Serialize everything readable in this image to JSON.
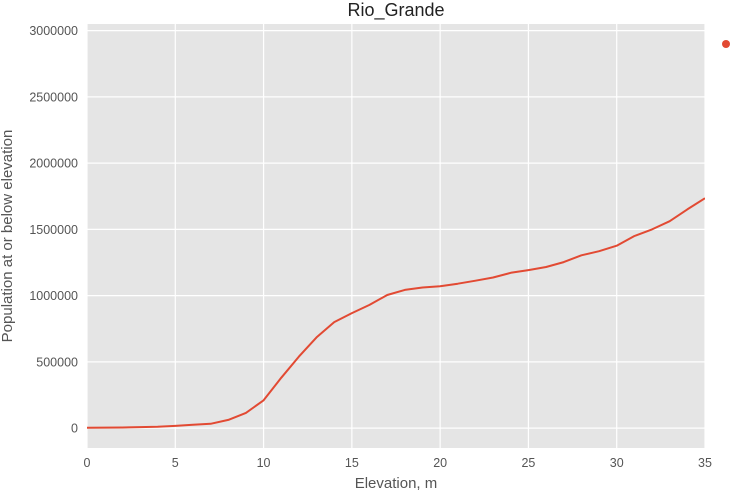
{
  "chart_data": {
    "type": "line",
    "title": "Rio_Grande",
    "xlabel": "Elevation, m",
    "ylabel": "Population at or below elevation",
    "xlim": [
      0,
      35
    ],
    "ylim": [
      -150000,
      3050000
    ],
    "xticks": [
      0,
      5,
      10,
      15,
      20,
      25,
      30,
      35
    ],
    "yticks": [
      0,
      500000,
      1000000,
      1500000,
      2000000,
      2500000,
      3000000
    ],
    "xtick_labels": [
      "0",
      "5",
      "10",
      "15",
      "20",
      "25",
      "30",
      "35"
    ],
    "ytick_labels": [
      "0",
      "500000",
      "1000000",
      "1500000",
      "2000000",
      "2500000",
      "3000000"
    ],
    "grid": true,
    "legend": "top-right, outside plot",
    "background_color": "#e5e5e5",
    "grid_color": "#ffffff",
    "series": [
      {
        "color": "#e24a33",
        "x": [
          0,
          1,
          2,
          3,
          4,
          5,
          6,
          7,
          8,
          9,
          10,
          11,
          12,
          13,
          14,
          15,
          16,
          17,
          18,
          19,
          20,
          21,
          22,
          23,
          24,
          25,
          26,
          27,
          28,
          29,
          30,
          31,
          32,
          33,
          34,
          35
        ],
        "y": [
          3000,
          4000,
          5000,
          8000,
          11000,
          17000,
          25000,
          33000,
          62000,
          115000,
          210000,
          380000,
          540000,
          685000,
          800000,
          868000,
          930000,
          1005000,
          1043000,
          1061000,
          1071000,
          1090000,
          1113000,
          1137000,
          1172000,
          1193000,
          1216000,
          1253000,
          1304000,
          1335000,
          1377000,
          1450000,
          1500000,
          1562000,
          1651000,
          1735000
        ]
      }
    ]
  }
}
